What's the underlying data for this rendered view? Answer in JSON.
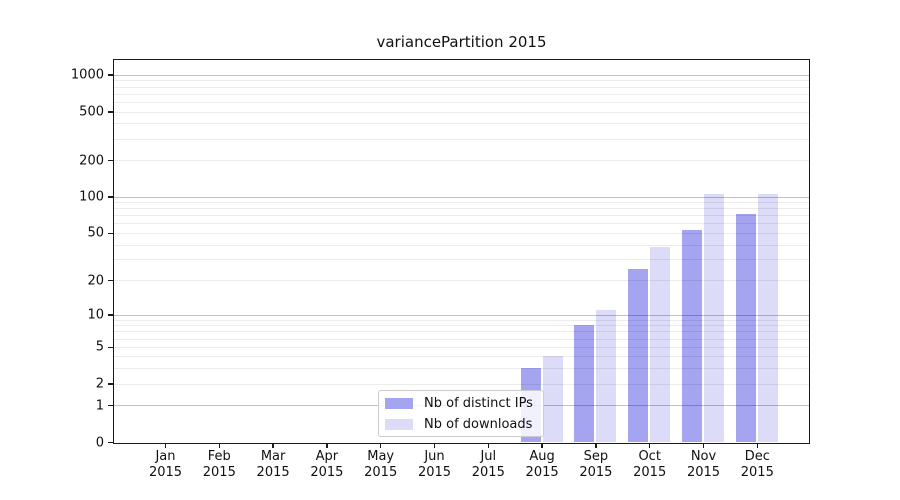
{
  "chart_data": {
    "type": "bar",
    "title": "variancePartition 2015",
    "year": "2015",
    "categories": [
      "Jan",
      "Feb",
      "Mar",
      "Apr",
      "May",
      "Jun",
      "Jul",
      "Aug",
      "Sep",
      "Oct",
      "Nov",
      "Dec"
    ],
    "series": [
      {
        "name": "Nb of distinct IPs",
        "color": "#a4a4f1",
        "values": [
          0,
          0,
          0,
          0,
          0,
          0,
          0,
          3,
          8,
          25,
          53,
          72
        ]
      },
      {
        "name": "Nb of downloads",
        "color": "#dcdcf9",
        "values": [
          0,
          0,
          0,
          0,
          0,
          0,
          0,
          4,
          11,
          38,
          106,
          106
        ]
      }
    ],
    "yscale": "log1p",
    "ylim": [
      0,
      1320
    ],
    "ytick_labels": [
      "0",
      "1",
      "2",
      "5",
      "10",
      "20",
      "50",
      "100",
      "200",
      "500",
      "1000"
    ],
    "ytick_values": [
      0,
      1,
      2,
      5,
      10,
      20,
      50,
      100,
      200,
      500,
      1000
    ],
    "grid_minor_values": [
      2,
      3,
      4,
      5,
      6,
      7,
      8,
      9,
      20,
      30,
      40,
      50,
      60,
      70,
      80,
      90,
      200,
      300,
      400,
      500,
      600,
      700,
      800,
      900
    ],
    "grid_major_values": [
      1,
      10,
      100,
      1000
    ],
    "xlabel": "",
    "ylabel": "",
    "legend_position": "bottom-center inside plot",
    "colors": {
      "spine": "#1a1a1a",
      "grid_major": "#c2c2c2",
      "grid_minor": "#ebebeb"
    }
  }
}
